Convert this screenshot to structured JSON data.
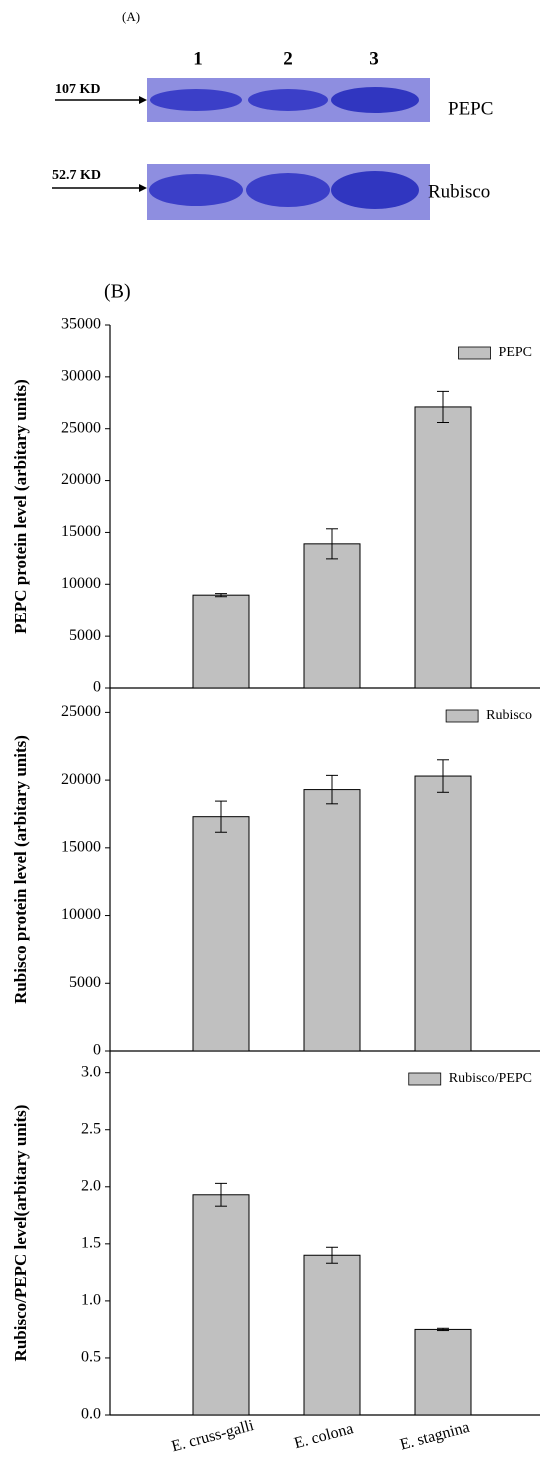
{
  "panel_a": {
    "label": "(A)",
    "lanes": [
      "1",
      "2",
      "3"
    ],
    "rows": [
      {
        "marker": "107 KD",
        "protein": "PEPC"
      },
      {
        "marker": "52.7 KD",
        "protein": "Rubisco"
      }
    ]
  },
  "chart_data": [
    {
      "type": "bar",
      "panel_label": "(B)",
      "ylabel": "PEPC protein level (arbitary units)",
      "ylim": [
        0,
        35000
      ],
      "yticks": [
        0,
        5000,
        10000,
        15000,
        20000,
        25000,
        30000,
        35000
      ],
      "series": [
        {
          "name": "PEPC",
          "color": "#c0c0c0",
          "values": [
            8950,
            13900,
            27100
          ],
          "errors": [
            150,
            1450,
            1500
          ]
        }
      ]
    },
    {
      "type": "bar",
      "ylabel": "Rubisco protein level (arbitary units)",
      "ylim": [
        0,
        26800
      ],
      "yticks": [
        0,
        5000,
        10000,
        15000,
        20000,
        25000
      ],
      "series": [
        {
          "name": "Rubisco",
          "color": "#c0c0c0",
          "values": [
            17300,
            19300,
            20300
          ],
          "errors": [
            1150,
            1050,
            1200
          ]
        }
      ]
    },
    {
      "type": "bar",
      "ylabel": "Rubisco/PEPC  level(arbitary units)",
      "categories": [
        "E. cruss-galli",
        "E. colona",
        "E. stagnina"
      ],
      "ylim": [
        0,
        3.19
      ],
      "yticks": [
        {
          "value": 0,
          "label": "0.0"
        },
        {
          "value": 0.5,
          "label": "0.5"
        },
        {
          "value": 1,
          "label": "1.0"
        },
        {
          "value": 1.5,
          "label": "1.5"
        },
        {
          "value": 2,
          "label": "2.0"
        },
        {
          "value": 2.5,
          "label": "2.5"
        },
        {
          "value": 3,
          "label": "3.0"
        }
      ],
      "series": [
        {
          "name": "Rubisco/PEPC",
          "color": "#c0c0c0",
          "values": [
            1.93,
            1.4,
            0.75
          ],
          "errors": [
            0.1,
            0.07,
            0.01
          ]
        }
      ]
    }
  ]
}
